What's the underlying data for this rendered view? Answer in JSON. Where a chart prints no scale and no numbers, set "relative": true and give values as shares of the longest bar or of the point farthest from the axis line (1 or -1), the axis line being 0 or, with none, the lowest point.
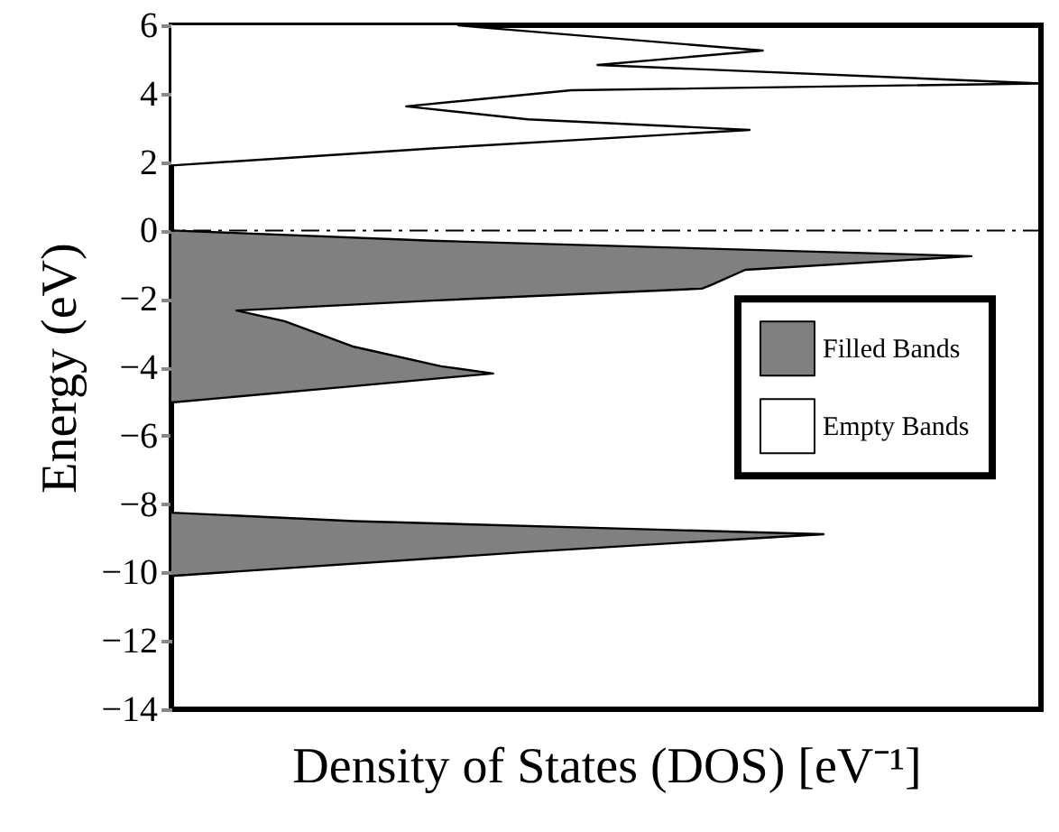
{
  "chart_data": {
    "type": "area",
    "orientation": "horizontal",
    "relative": true,
    "xlabel": "Density of States (DOS) [eV⁻¹]",
    "ylabel": "Energy (eV)",
    "ylim": [
      -14,
      6
    ],
    "yticks": [
      -14,
      -12,
      -10,
      -8,
      -6,
      -4,
      -2,
      0,
      2,
      4,
      6
    ],
    "series": [
      {
        "name": "Filled Bands",
        "color": "#808080",
        "x": [
          -10.1,
          -9.4,
          -8.88,
          -8.5,
          -8.25,
          -5.03,
          -4.55,
          -4.18,
          -3.97,
          -3.4,
          -2.65,
          -2.34,
          -2.05,
          -1.7,
          -1.6,
          -1.15,
          -0.75,
          -0.3,
          0
        ],
        "values": [
          0,
          0.41,
          0.75,
          0.21,
          0,
          0,
          0.21,
          0.37,
          0.31,
          0.21,
          0.13,
          0.075,
          0.3,
          0.61,
          0.62,
          0.66,
          0.92,
          0.3,
          0
        ]
      },
      {
        "name": "Empty Bands",
        "color": "#ffffff",
        "x": [
          1.9,
          2.4,
          2.94,
          3.25,
          3.63,
          4.1,
          4.3,
          4.84,
          5.26,
          5.95,
          6
        ],
        "values": [
          0,
          0.3,
          0.665,
          0.41,
          0.27,
          0.46,
          1.0,
          0.49,
          0.68,
          0.35,
          0.33
        ]
      }
    ],
    "ref_lines": [
      {
        "axis": "y",
        "value": 0,
        "line_style": "dashed",
        "color": "#000000"
      }
    ],
    "legend": "right",
    "grid": false
  }
}
